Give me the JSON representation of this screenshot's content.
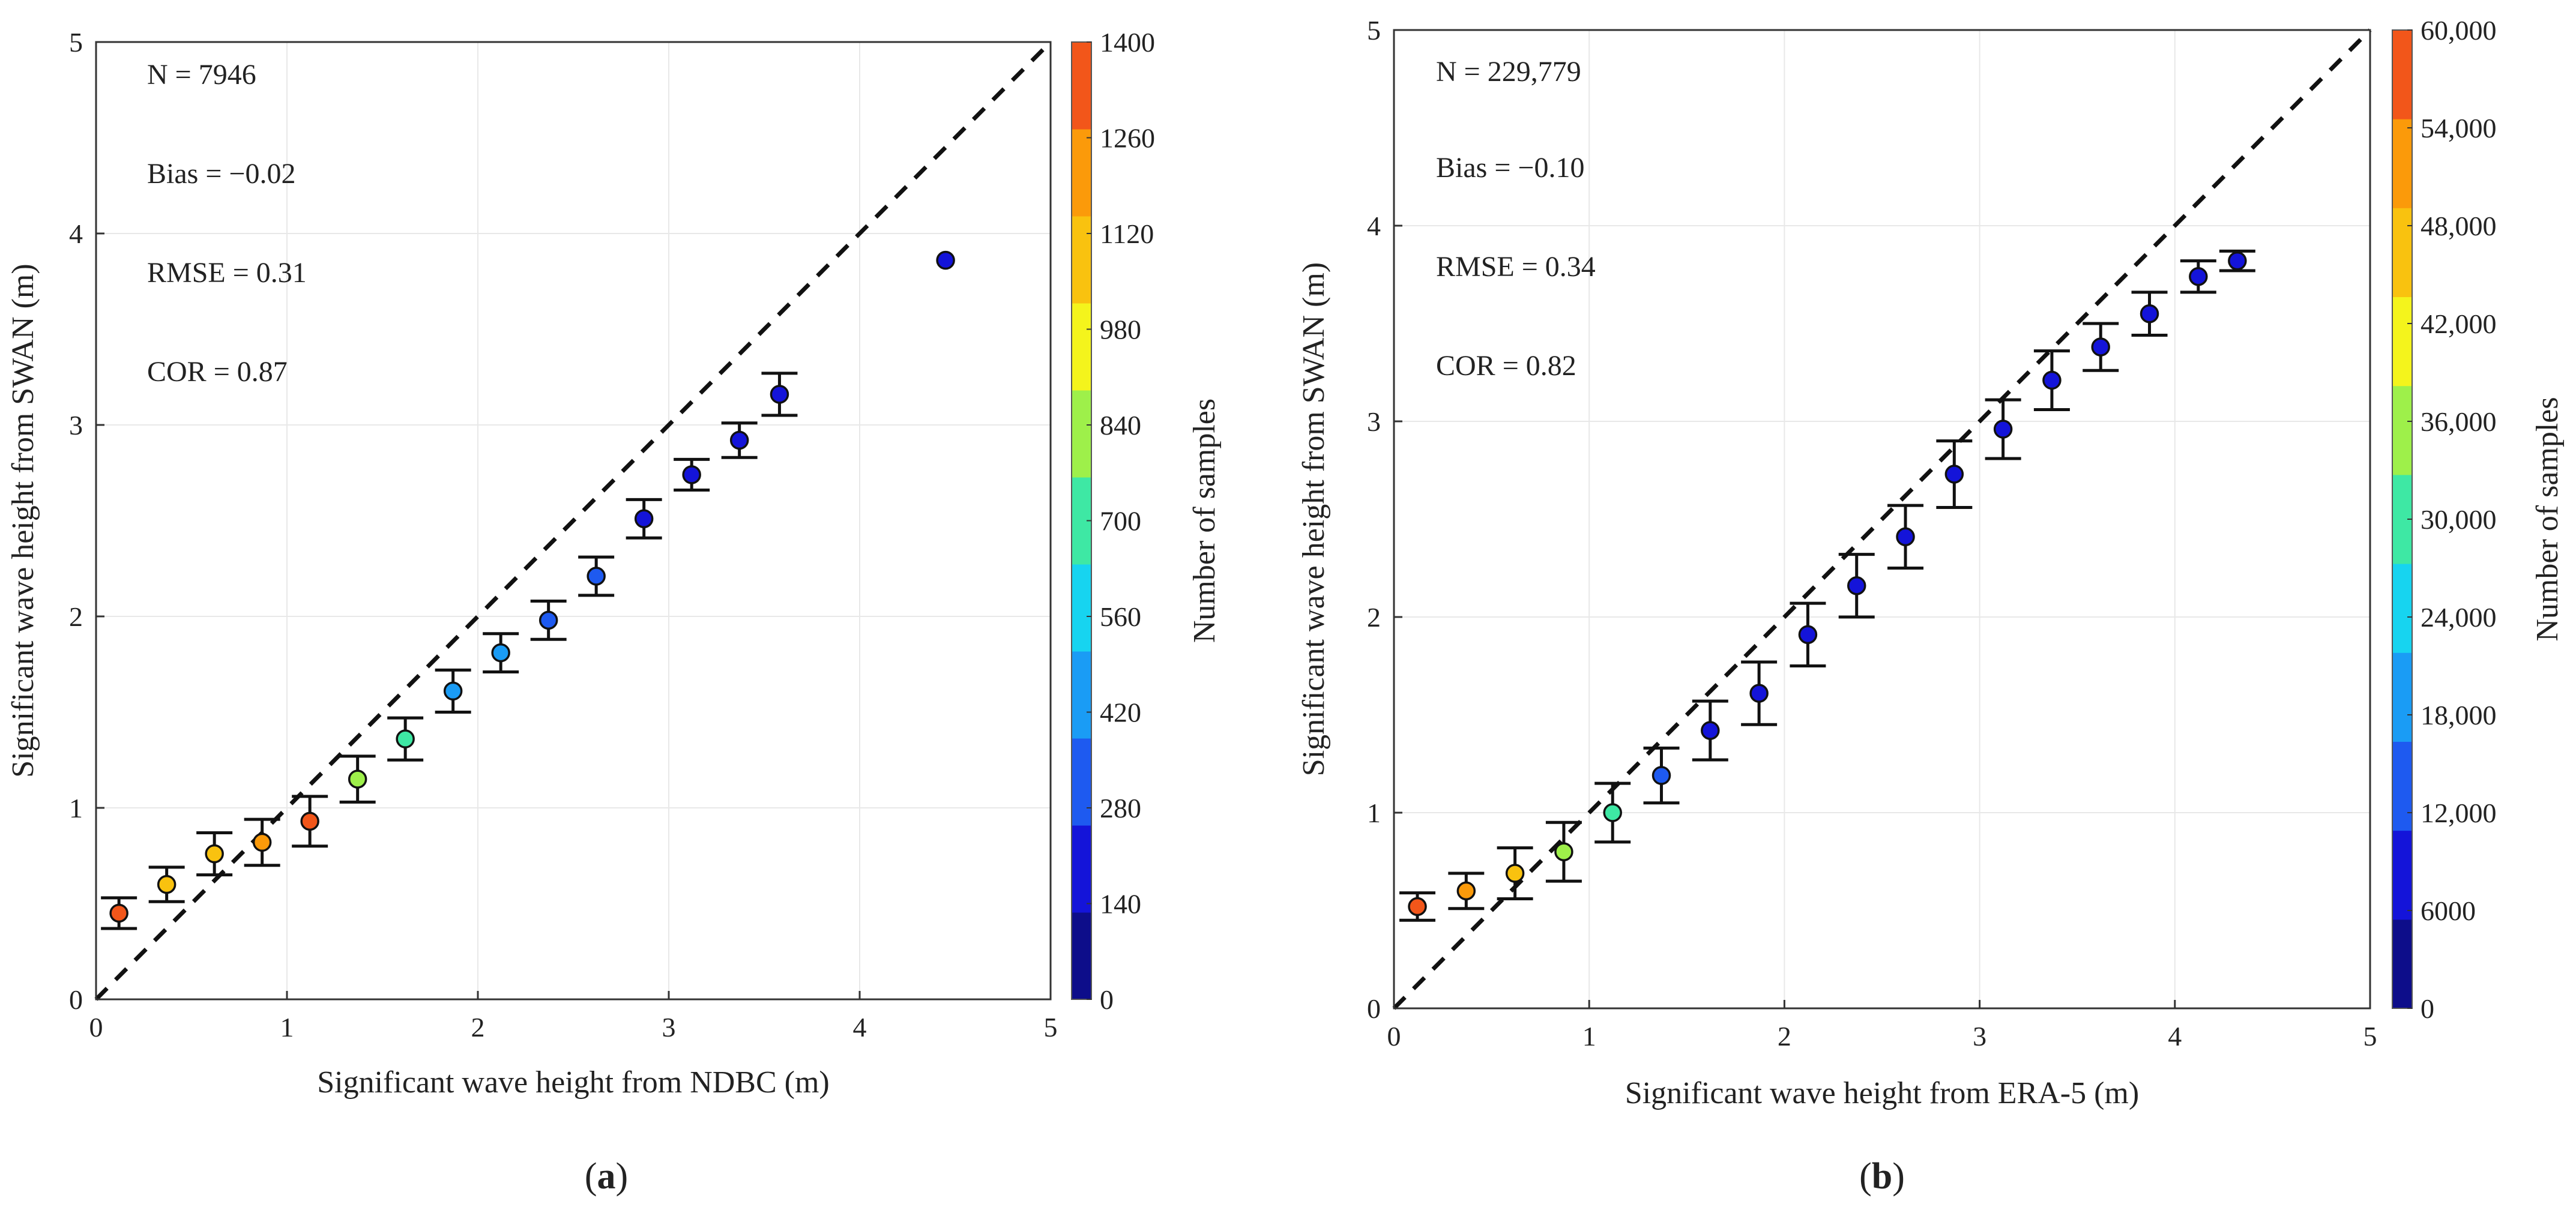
{
  "chart_data": [
    {
      "type": "scatter",
      "panel_label": "a",
      "xlabel": "Significant wave height from NDBC (m)",
      "ylabel": "Significant wave height from SWAN (m)",
      "xlim": [
        0,
        5
      ],
      "ylim": [
        0,
        5
      ],
      "xticks": [
        0,
        1,
        2,
        3,
        4,
        5
      ],
      "yticks": [
        0,
        1,
        2,
        3,
        4,
        5
      ],
      "grid": true,
      "reference_line": "1:1 dashed",
      "stats": [
        "N = 7946",
        "Bias = −0.02",
        "RMSE = 0.31",
        "COR = 0.87"
      ],
      "colorbar": {
        "label": "Number of samples",
        "min": 0,
        "max": 1400,
        "ticks": [
          0,
          140,
          280,
          420,
          560,
          700,
          840,
          980,
          1120,
          1260,
          1400
        ],
        "tick_labels": [
          "0",
          "140",
          "280",
          "420",
          "560",
          "700",
          "840",
          "980",
          "1120",
          "1260",
          "1400"
        ]
      },
      "points": [
        {
          "x": 0.12,
          "y": 0.45,
          "err": 0.08,
          "n": 1380
        },
        {
          "x": 0.37,
          "y": 0.6,
          "err": 0.09,
          "n": 1080
        },
        {
          "x": 0.62,
          "y": 0.76,
          "err": 0.11,
          "n": 1100
        },
        {
          "x": 0.87,
          "y": 0.82,
          "err": 0.12,
          "n": 1240
        },
        {
          "x": 1.12,
          "y": 0.93,
          "err": 0.13,
          "n": 1350
        },
        {
          "x": 1.37,
          "y": 1.15,
          "err": 0.12,
          "n": 800
        },
        {
          "x": 1.62,
          "y": 1.36,
          "err": 0.11,
          "n": 640
        },
        {
          "x": 1.87,
          "y": 1.61,
          "err": 0.11,
          "n": 480
        },
        {
          "x": 2.12,
          "y": 1.81,
          "err": 0.1,
          "n": 400
        },
        {
          "x": 2.37,
          "y": 1.98,
          "err": 0.1,
          "n": 340
        },
        {
          "x": 2.62,
          "y": 2.21,
          "err": 0.1,
          "n": 280
        },
        {
          "x": 2.87,
          "y": 2.51,
          "err": 0.1,
          "n": 250
        },
        {
          "x": 3.12,
          "y": 2.74,
          "err": 0.08,
          "n": 200
        },
        {
          "x": 3.37,
          "y": 2.92,
          "err": 0.09,
          "n": 180
        },
        {
          "x": 3.58,
          "y": 3.16,
          "err": 0.11,
          "n": 160
        },
        {
          "x": 4.45,
          "y": 3.86,
          "err": 0.0,
          "n": 150
        }
      ]
    },
    {
      "type": "scatter",
      "panel_label": "b",
      "xlabel": "Significant wave height from ERA-5 (m)",
      "ylabel": "Significant wave height from SWAN (m)",
      "xlim": [
        0,
        5
      ],
      "ylim": [
        0,
        5
      ],
      "xticks": [
        0,
        1,
        2,
        3,
        4,
        5
      ],
      "yticks": [
        0,
        1,
        2,
        3,
        4,
        5
      ],
      "grid": true,
      "reference_line": "1:1 dashed",
      "stats": [
        "N = 229,779",
        "Bias = −0.10",
        "RMSE = 0.34",
        "COR = 0.82"
      ],
      "colorbar": {
        "label": "Number of samples",
        "min": 0,
        "max": 60000,
        "ticks": [
          0,
          6000,
          12000,
          18000,
          24000,
          30000,
          36000,
          42000,
          48000,
          54000,
          60000
        ],
        "tick_labels": [
          "0",
          "6000",
          "12,000",
          "18,000",
          "24,000",
          "30,000",
          "36,000",
          "42,000",
          "48,000",
          "54,000",
          "60,000"
        ]
      },
      "points": [
        {
          "x": 0.12,
          "y": 0.52,
          "err": 0.07,
          "n": 58000
        },
        {
          "x": 0.37,
          "y": 0.6,
          "err": 0.09,
          "n": 52000
        },
        {
          "x": 0.62,
          "y": 0.69,
          "err": 0.13,
          "n": 46000
        },
        {
          "x": 0.87,
          "y": 0.8,
          "err": 0.15,
          "n": 38000
        },
        {
          "x": 1.12,
          "y": 1.0,
          "err": 0.15,
          "n": 28000
        },
        {
          "x": 1.37,
          "y": 1.19,
          "err": 0.14,
          "n": 16000
        },
        {
          "x": 1.62,
          "y": 1.42,
          "err": 0.15,
          "n": 10000
        },
        {
          "x": 1.87,
          "y": 1.61,
          "err": 0.16,
          "n": 9000
        },
        {
          "x": 2.12,
          "y": 1.91,
          "err": 0.16,
          "n": 8500
        },
        {
          "x": 2.37,
          "y": 2.16,
          "err": 0.16,
          "n": 8000
        },
        {
          "x": 2.62,
          "y": 2.41,
          "err": 0.16,
          "n": 7500
        },
        {
          "x": 2.87,
          "y": 2.73,
          "err": 0.17,
          "n": 7200
        },
        {
          "x": 3.12,
          "y": 2.96,
          "err": 0.15,
          "n": 7000
        },
        {
          "x": 3.37,
          "y": 3.21,
          "err": 0.15,
          "n": 6800
        },
        {
          "x": 3.62,
          "y": 3.38,
          "err": 0.12,
          "n": 6600
        },
        {
          "x": 3.87,
          "y": 3.55,
          "err": 0.11,
          "n": 6500
        },
        {
          "x": 4.12,
          "y": 3.74,
          "err": 0.08,
          "n": 6400
        },
        {
          "x": 4.32,
          "y": 3.82,
          "err": 0.05,
          "n": 6300
        }
      ]
    }
  ],
  "colormap": [
    "#0d0d8a",
    "#1414d9",
    "#1e5af0",
    "#1a9cf5",
    "#17d4f0",
    "#3ee8a4",
    "#9ef04a",
    "#f4f41c",
    "#f9c20f",
    "#fb9a0a",
    "#f2561a"
  ]
}
